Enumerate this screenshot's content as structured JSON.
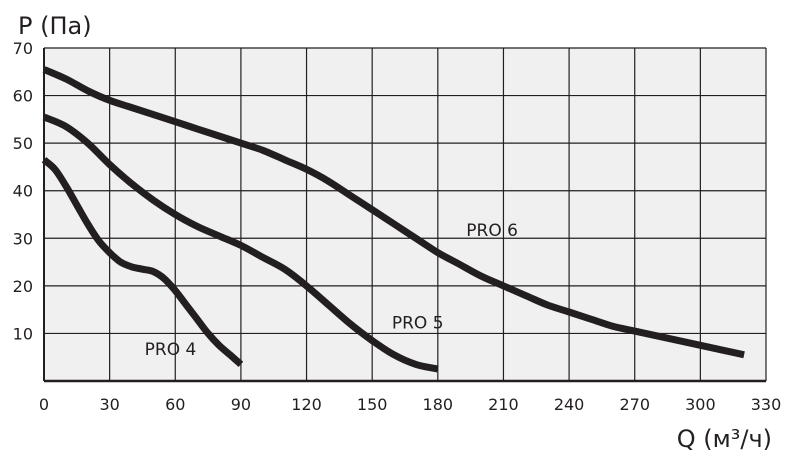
{
  "chart_data": {
    "type": "line",
    "title": "",
    "ylabel": "P (Па)",
    "xlabel": "Q (м³/ч)",
    "xlim": [
      0,
      330
    ],
    "ylim": [
      0,
      70
    ],
    "x_ticks": [
      0,
      30,
      60,
      90,
      120,
      150,
      180,
      210,
      240,
      270,
      300,
      330
    ],
    "y_ticks": [
      10,
      20,
      30,
      40,
      50,
      60,
      70
    ],
    "grid": true,
    "legend": "none",
    "background_color": "#f0f0f0",
    "grid_color": "#231f20",
    "line_color": "#231f20",
    "series": [
      {
        "name": "PRO 4",
        "x": [
          0,
          5,
          10,
          15,
          20,
          25,
          30,
          35,
          40,
          45,
          50,
          55,
          60,
          65,
          70,
          75,
          80,
          85,
          90
        ],
        "y": [
          46.5,
          44.5,
          41,
          37,
          33,
          29.5,
          27,
          25,
          24,
          23.5,
          23,
          21.5,
          19,
          16,
          13,
          10,
          7.5,
          5.5,
          3.5
        ]
      },
      {
        "name": "PRO 5",
        "x": [
          0,
          10,
          20,
          30,
          40,
          50,
          60,
          70,
          80,
          90,
          100,
          110,
          120,
          130,
          140,
          150,
          160,
          170,
          180
        ],
        "y": [
          55.5,
          53.5,
          50,
          45.5,
          41.5,
          38,
          35,
          32.5,
          30.5,
          28.5,
          26,
          23.5,
          20,
          16,
          12,
          8.5,
          5.5,
          3.5,
          2.5
        ]
      },
      {
        "name": "PRO 6",
        "x": [
          0,
          10,
          20,
          30,
          40,
          50,
          60,
          70,
          80,
          90,
          100,
          110,
          120,
          130,
          140,
          150,
          160,
          170,
          180,
          190,
          200,
          210,
          220,
          230,
          240,
          250,
          260,
          270,
          280,
          290,
          300,
          310,
          320
        ],
        "y": [
          65.5,
          63.5,
          61,
          59,
          57.5,
          56,
          54.5,
          53,
          51.5,
          50,
          48.5,
          46.5,
          44.5,
          42,
          39,
          36,
          33,
          30,
          27,
          24.5,
          22,
          20,
          18,
          16,
          14.5,
          13,
          11.5,
          10.5,
          9.5,
          8.5,
          7.5,
          6.5,
          5.5
        ]
      }
    ],
    "annotations": [
      {
        "text": "PRO 6",
        "x": 193,
        "y": 30.5
      },
      {
        "text": "PRO 5",
        "x": 159,
        "y": 11
      },
      {
        "text": "PRO 4",
        "x": 46,
        "y": 5.5
      }
    ]
  }
}
